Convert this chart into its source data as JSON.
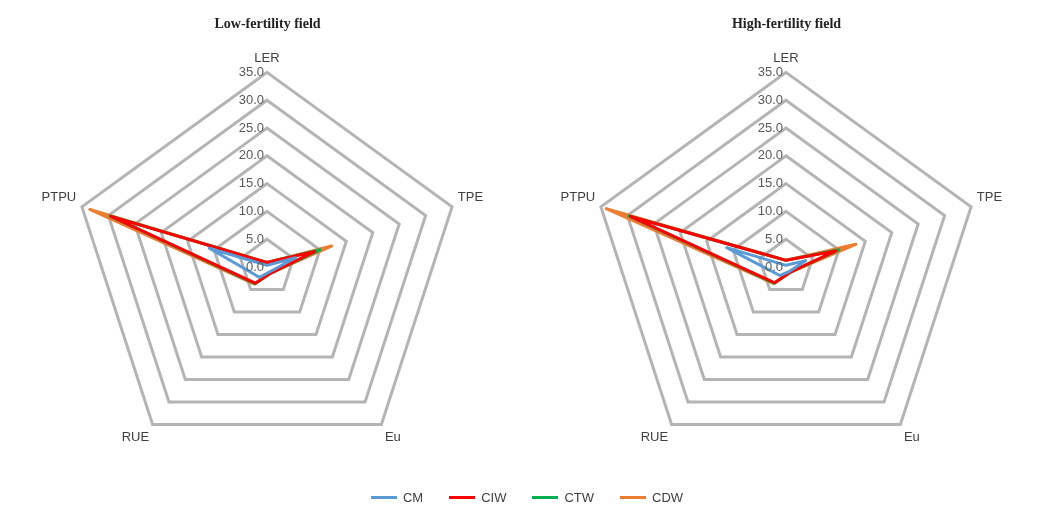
{
  "chart_data": [
    {
      "type": "radar",
      "title": "Low-fertility field",
      "categories": [
        "LER",
        "TPE",
        "Eu",
        "RUE",
        "PTPU"
      ],
      "ylim": [
        0,
        35
      ],
      "yticks": [
        {
          "value": 0,
          "label": "0.0"
        },
        {
          "value": 5,
          "label": "5.0"
        },
        {
          "value": 10,
          "label": "10.0"
        },
        {
          "value": 15,
          "label": "15.0"
        },
        {
          "value": 20,
          "label": "20.0"
        },
        {
          "value": 25,
          "label": "25.0"
        },
        {
          "value": 30,
          "label": "30.0"
        },
        {
          "value": 35,
          "label": "35.0"
        }
      ],
      "grid": true,
      "legend": "bottom",
      "marker": "none",
      "series": [
        {
          "name": "CM",
          "color": "#5b9bd5",
          "values": [
            0.3,
            5.4,
            1.0,
            2.3,
            10.9
          ]
        },
        {
          "name": "CIW",
          "color": "#ff0000",
          "values": [
            0.8,
            9.0,
            1.3,
            3.6,
            29.5
          ]
        },
        {
          "name": "CTW",
          "color": "#00b050",
          "values": [
            0.8,
            10.0,
            1.3,
            3.7,
            29.7
          ]
        },
        {
          "name": "CDW",
          "color": "#ed7d31",
          "values": [
            0.8,
            12.2,
            1.3,
            3.8,
            33.5
          ]
        }
      ]
    },
    {
      "type": "radar",
      "title": "High-fertility field",
      "categories": [
        "LER",
        "TPE",
        "Eu",
        "RUE",
        "PTPU"
      ],
      "ylim": [
        0,
        35
      ],
      "yticks": [
        {
          "value": 0,
          "label": "0.0"
        },
        {
          "value": 5,
          "label": "5.0"
        },
        {
          "value": 10,
          "label": "10.0"
        },
        {
          "value": 15,
          "label": "15.0"
        },
        {
          "value": 20,
          "label": "20.0"
        },
        {
          "value": 25,
          "label": "25.0"
        },
        {
          "value": 30,
          "label": "30.0"
        },
        {
          "value": 35,
          "label": "35.0"
        }
      ],
      "grid": true,
      "marker": "none",
      "series": [
        {
          "color": "#5b9bd5",
          "values": [
            0.3,
            3.7,
            1.0,
            1.9,
            11.2
          ]
        },
        {
          "color": "#ff0000",
          "values": [
            1.2,
            9.4,
            1.2,
            3.5,
            29.4
          ]
        },
        {
          "color": "#00b050",
          "values": [
            1.2,
            10.0,
            1.2,
            3.6,
            29.7
          ]
        },
        {
          "color": "#ed7d31",
          "values": [
            1.2,
            13.2,
            1.2,
            3.7,
            34.0
          ]
        }
      ]
    }
  ]
}
